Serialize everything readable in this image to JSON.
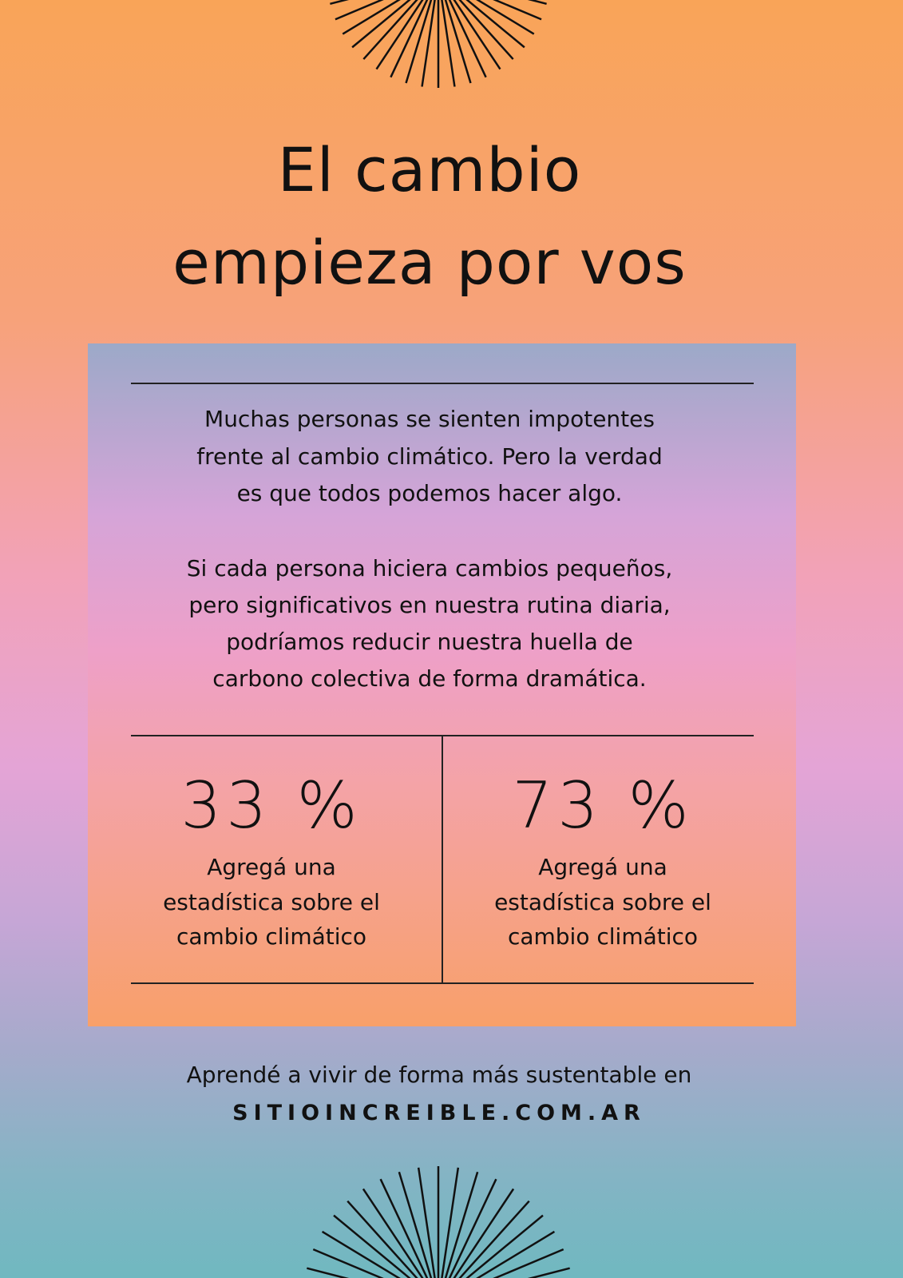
{
  "header": {
    "title_lines": [
      "El cambio",
      "empieza por vos"
    ]
  },
  "intro": {
    "paragraphs": [
      [
        "Muchas personas se sienten impotentes",
        "frente al cambio climático. Pero la verdad",
        "es que todos podemos hacer algo."
      ],
      [
        "Si cada persona hiciera cambios pequeños,",
        "pero significativos en nuestra rutina diaria,",
        "podríamos reducir nuestra huella de",
        "carbono colectiva de forma dramática."
      ]
    ]
  },
  "stats": [
    {
      "value": "33 %",
      "label_lines": [
        "Agregá una",
        "estadística sobre el",
        "cambio climático"
      ]
    },
    {
      "value": "73 %",
      "label_lines": [
        "Agregá una",
        "estadística sobre el",
        "cambio climático"
      ]
    }
  ],
  "footer": {
    "text": "Aprendé a vivir de forma más sustentable en",
    "link": "SITIOINCREIBLE.COM.AR"
  }
}
